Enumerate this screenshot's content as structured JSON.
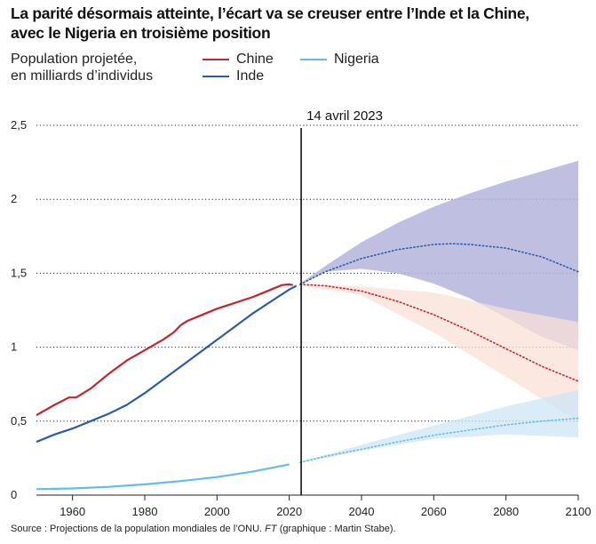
{
  "header": {
    "title_line1": "La parité désormais atteinte, l’écart va se creuser entre l’Inde et la Chine,",
    "title_line2": "avec le Nigeria en troisième position",
    "subtitle_line1": "Population projetée,",
    "subtitle_line2": "en milliards d’individus"
  },
  "legend": {
    "china": "Chine",
    "india": "Inde",
    "nigeria": "Nigeria"
  },
  "footer": {
    "source_text": "Source : Projections de la population mondiales de l’ONU.",
    "source_ft": "FT",
    "source_credit": "(graphique : Martin Stabe)."
  },
  "chart_data": {
    "type": "line",
    "xlim": [
      1950,
      2100
    ],
    "ylim": [
      0,
      2.5
    ],
    "x_ticks": [
      1960,
      1980,
      2000,
      2020,
      2040,
      2060,
      2080,
      2100
    ],
    "y_ticks": [
      {
        "value": 0,
        "label": "0"
      },
      {
        "value": 0.5,
        "label": "0,5"
      },
      {
        "value": 1,
        "label": "1"
      },
      {
        "value": 1.5,
        "label": "1,5"
      },
      {
        "value": 2,
        "label": "2"
      },
      {
        "value": 2.5,
        "label": "2,5"
      }
    ],
    "grid": "horizontal-dotted",
    "annotation": {
      "x": 2023.3,
      "label": "14 avril 2023"
    },
    "colors": {
      "china": "#c4252f",
      "india": "#2a5da5",
      "nigeria": "#62bdea",
      "china_band": "#f8e0d7",
      "india_band": "#b4b5dc",
      "nigeria_band": "#cde6f6",
      "marker": "#111111"
    },
    "series": [
      {
        "key": "china",
        "name": "Chine",
        "historical": [
          [
            1950,
            0.54
          ],
          [
            1955,
            0.61
          ],
          [
            1959,
            0.66
          ],
          [
            1961,
            0.66
          ],
          [
            1965,
            0.72
          ],
          [
            1970,
            0.82
          ],
          [
            1975,
            0.91
          ],
          [
            1980,
            0.98
          ],
          [
            1985,
            1.05
          ],
          [
            1988,
            1.1
          ],
          [
            1990,
            1.15
          ],
          [
            1992,
            1.18
          ],
          [
            1995,
            1.21
          ],
          [
            1997,
            1.23
          ],
          [
            2000,
            1.26
          ],
          [
            2005,
            1.3
          ],
          [
            2010,
            1.34
          ],
          [
            2012,
            1.36
          ],
          [
            2015,
            1.39
          ],
          [
            2018,
            1.42
          ],
          [
            2020,
            1.425
          ],
          [
            2021,
            1.42
          ]
        ],
        "projection": [
          [
            2023,
            1.425
          ],
          [
            2030,
            1.415
          ],
          [
            2040,
            1.38
          ],
          [
            2050,
            1.31
          ],
          [
            2060,
            1.22
          ],
          [
            2070,
            1.11
          ],
          [
            2080,
            0.99
          ],
          [
            2090,
            0.87
          ],
          [
            2100,
            0.77
          ]
        ],
        "band_upper": [
          [
            2023,
            1.43
          ],
          [
            2040,
            1.41
          ],
          [
            2060,
            1.37
          ],
          [
            2080,
            1.26
          ],
          [
            2100,
            1.17
          ]
        ],
        "band_lower": [
          [
            2023,
            1.42
          ],
          [
            2040,
            1.35
          ],
          [
            2060,
            1.1
          ],
          [
            2080,
            0.8
          ],
          [
            2100,
            0.5
          ]
        ]
      },
      {
        "key": "india",
        "name": "Inde",
        "historical": [
          [
            1950,
            0.36
          ],
          [
            1955,
            0.41
          ],
          [
            1960,
            0.45
          ],
          [
            1965,
            0.5
          ],
          [
            1970,
            0.55
          ],
          [
            1975,
            0.61
          ],
          [
            1980,
            0.69
          ],
          [
            1985,
            0.78
          ],
          [
            1990,
            0.87
          ],
          [
            1995,
            0.96
          ],
          [
            2000,
            1.05
          ],
          [
            2005,
            1.14
          ],
          [
            2010,
            1.23
          ],
          [
            2015,
            1.31
          ],
          [
            2020,
            1.39
          ],
          [
            2022,
            1.415
          ]
        ],
        "projection": [
          [
            2023,
            1.425
          ],
          [
            2030,
            1.51
          ],
          [
            2040,
            1.6
          ],
          [
            2050,
            1.66
          ],
          [
            2060,
            1.695
          ],
          [
            2065,
            1.7
          ],
          [
            2070,
            1.695
          ],
          [
            2080,
            1.67
          ],
          [
            2090,
            1.61
          ],
          [
            2100,
            1.51
          ]
        ],
        "band_upper": [
          [
            2023,
            1.43
          ],
          [
            2030,
            1.55
          ],
          [
            2040,
            1.71
          ],
          [
            2050,
            1.84
          ],
          [
            2060,
            1.95
          ],
          [
            2070,
            2.04
          ],
          [
            2080,
            2.12
          ],
          [
            2090,
            2.19
          ],
          [
            2100,
            2.26
          ]
        ],
        "band_lower": [
          [
            2023,
            1.42
          ],
          [
            2030,
            1.51
          ],
          [
            2040,
            1.53
          ],
          [
            2050,
            1.5
          ],
          [
            2060,
            1.43
          ],
          [
            2070,
            1.33
          ],
          [
            2080,
            1.2
          ],
          [
            2090,
            1.07
          ],
          [
            2100,
            0.98
          ]
        ]
      },
      {
        "key": "nigeria",
        "name": "Nigeria",
        "historical": [
          [
            1950,
            0.04
          ],
          [
            1960,
            0.045
          ],
          [
            1970,
            0.056
          ],
          [
            1980,
            0.073
          ],
          [
            1990,
            0.095
          ],
          [
            2000,
            0.122
          ],
          [
            2010,
            0.16
          ],
          [
            2020,
            0.208
          ]
        ],
        "projection": [
          [
            2023,
            0.222
          ],
          [
            2030,
            0.262
          ],
          [
            2040,
            0.31
          ],
          [
            2050,
            0.36
          ],
          [
            2060,
            0.405
          ],
          [
            2070,
            0.44
          ],
          [
            2080,
            0.475
          ],
          [
            2090,
            0.5
          ],
          [
            2100,
            0.52
          ]
        ],
        "band_upper": [
          [
            2023,
            0.225
          ],
          [
            2040,
            0.34
          ],
          [
            2060,
            0.47
          ],
          [
            2080,
            0.6
          ],
          [
            2100,
            0.71
          ]
        ],
        "band_lower": [
          [
            2023,
            0.215
          ],
          [
            2040,
            0.3
          ],
          [
            2060,
            0.38
          ],
          [
            2080,
            0.41
          ],
          [
            2100,
            0.39
          ]
        ]
      }
    ]
  }
}
